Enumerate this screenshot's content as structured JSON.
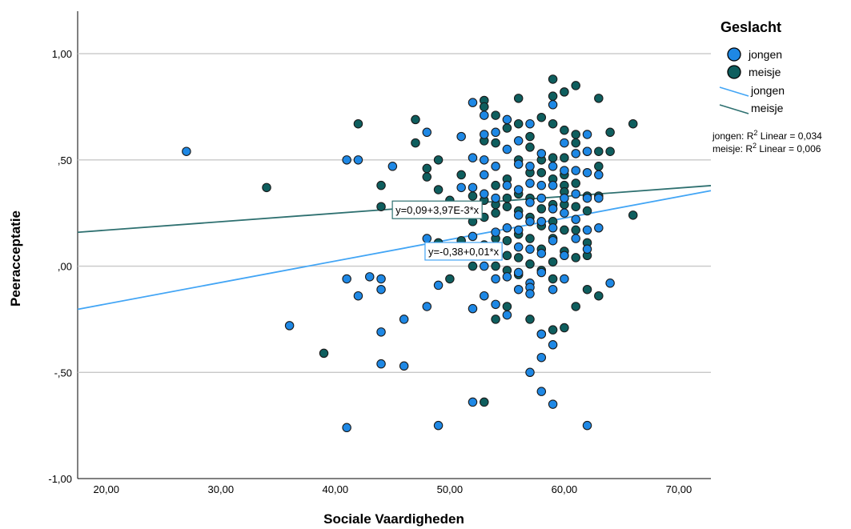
{
  "chart_data": {
    "type": "scatter",
    "xlabel": "Sociale Vaardigheden",
    "ylabel": "Peeracceptatie",
    "xlim": [
      17.5,
      72.8
    ],
    "ylim": [
      -1.0,
      1.2
    ],
    "x_ticks": [
      20,
      30,
      40,
      50,
      60,
      70
    ],
    "x_tick_labels": [
      "20,00",
      "30,00",
      "40,00",
      "50,00",
      "60,00",
      "70,00"
    ],
    "y_ticks": [
      -1.0,
      -0.5,
      0.0,
      0.5,
      1.0
    ],
    "y_tick_labels": [
      "-1,00",
      "-,50",
      ",00",
      ",50",
      "1,00"
    ],
    "grid": "horizontal",
    "legend": {
      "title": "Geslacht",
      "placement": "right",
      "marker_items": [
        "jongen",
        "meisje"
      ],
      "line_items": [
        "jongen",
        "meisje"
      ]
    },
    "r2_labels": {
      "jongen": "jongen: R",
      "meisje": "meisje: R",
      "sup": "2",
      "jongen_tail": " Linear = 0,034",
      "meisje_tail": " Linear = 0,006"
    },
    "series": [
      {
        "name": "jongen",
        "color": "#1e88e5",
        "fit": {
          "intercept": -0.38,
          "slope": 0.0101,
          "label": "y=-0,38+0,01*x",
          "label_x": 51.2,
          "label_y": 0.07
        },
        "points": [
          [
            27,
            0.54
          ],
          [
            36,
            -0.28
          ],
          [
            41,
            0.5
          ],
          [
            41,
            -0.06
          ],
          [
            41,
            -0.76
          ],
          [
            42,
            0.5
          ],
          [
            42,
            -0.14
          ],
          [
            43,
            -0.05
          ],
          [
            44,
            -0.06
          ],
          [
            44,
            -0.11
          ],
          [
            44,
            -0.31
          ],
          [
            44,
            -0.46
          ],
          [
            45,
            0.47
          ],
          [
            46,
            -0.25
          ],
          [
            46,
            -0.47
          ],
          [
            48,
            0.63
          ],
          [
            48,
            0.13
          ],
          [
            48,
            -0.19
          ],
          [
            49,
            -0.09
          ],
          [
            49,
            -0.75
          ],
          [
            50,
            0.06
          ],
          [
            51,
            0.61
          ],
          [
            51,
            0.37
          ],
          [
            52,
            0.77
          ],
          [
            52,
            0.51
          ],
          [
            52,
            0.37
          ],
          [
            52,
            0.14
          ],
          [
            52,
            0.06
          ],
          [
            52,
            -0.64
          ],
          [
            52,
            -0.2
          ],
          [
            53,
            0.71
          ],
          [
            53,
            0.62
          ],
          [
            53,
            0.5
          ],
          [
            53,
            0.43
          ],
          [
            53,
            0.34
          ],
          [
            53,
            0.07
          ],
          [
            53,
            0.0
          ],
          [
            53,
            -0.14
          ],
          [
            54,
            0.63
          ],
          [
            54,
            0.47
          ],
          [
            54,
            0.32
          ],
          [
            54,
            0.16
          ],
          [
            54,
            -0.06
          ],
          [
            54,
            -0.18
          ],
          [
            55,
            0.69
          ],
          [
            55,
            0.55
          ],
          [
            55,
            0.38
          ],
          [
            55,
            0.18
          ],
          [
            55,
            -0.05
          ],
          [
            55,
            -0.23
          ],
          [
            56,
            0.59
          ],
          [
            56,
            0.48
          ],
          [
            56,
            0.36
          ],
          [
            56,
            0.24
          ],
          [
            56,
            0.17
          ],
          [
            56,
            0.09
          ],
          [
            56,
            -0.03
          ],
          [
            56,
            -0.11
          ],
          [
            57,
            0.67
          ],
          [
            57,
            0.47
          ],
          [
            57,
            0.39
          ],
          [
            57,
            0.3
          ],
          [
            57,
            0.21
          ],
          [
            57,
            0.08
          ],
          [
            57,
            -0.08
          ],
          [
            57,
            -0.1
          ],
          [
            57,
            -0.13
          ],
          [
            57,
            -0.5
          ],
          [
            58,
            0.53
          ],
          [
            58,
            0.38
          ],
          [
            58,
            0.32
          ],
          [
            58,
            0.21
          ],
          [
            58,
            0.06
          ],
          [
            58,
            -0.03
          ],
          [
            58,
            -0.32
          ],
          [
            58,
            -0.43
          ],
          [
            58,
            -0.59
          ],
          [
            59,
            0.76
          ],
          [
            59,
            0.47
          ],
          [
            59,
            0.38
          ],
          [
            59,
            0.27
          ],
          [
            59,
            0.18
          ],
          [
            59,
            0.12
          ],
          [
            59,
            -0.11
          ],
          [
            59,
            -0.37
          ],
          [
            59,
            -0.65
          ],
          [
            60,
            0.58
          ],
          [
            60,
            0.45
          ],
          [
            60,
            0.32
          ],
          [
            60,
            0.25
          ],
          [
            60,
            0.05
          ],
          [
            60,
            -0.06
          ],
          [
            61,
            0.53
          ],
          [
            61,
            0.45
          ],
          [
            61,
            0.34
          ],
          [
            61,
            0.22
          ],
          [
            61,
            0.13
          ],
          [
            62,
            0.62
          ],
          [
            62,
            0.54
          ],
          [
            62,
            0.44
          ],
          [
            62,
            0.32
          ],
          [
            62,
            0.17
          ],
          [
            62,
            0.08
          ],
          [
            62,
            -0.75
          ],
          [
            63,
            0.43
          ],
          [
            63,
            0.32
          ],
          [
            63,
            0.18
          ],
          [
            64,
            -0.08
          ]
        ]
      },
      {
        "name": "meisje",
        "color": "#0e5e5e",
        "fit": {
          "intercept": 0.09,
          "slope": 0.00397,
          "label": "y=0,09+3,97E-3*x",
          "label_x": 48.9,
          "label_y": 0.265
        },
        "points": [
          [
            34,
            0.37
          ],
          [
            39,
            -0.41
          ],
          [
            42,
            0.67
          ],
          [
            44,
            0.38
          ],
          [
            44,
            0.28
          ],
          [
            47,
            0.69
          ],
          [
            47,
            0.58
          ],
          [
            48,
            0.46
          ],
          [
            48,
            0.42
          ],
          [
            48,
            0.25
          ],
          [
            49,
            0.5
          ],
          [
            49,
            0.36
          ],
          [
            49,
            0.11
          ],
          [
            50,
            0.31
          ],
          [
            50,
            0.05
          ],
          [
            50,
            -0.06
          ],
          [
            51,
            0.43
          ],
          [
            51,
            0.12
          ],
          [
            52,
            0.33
          ],
          [
            52,
            0.21
          ],
          [
            52,
            0.0
          ],
          [
            53,
            0.78
          ],
          [
            53,
            0.75
          ],
          [
            53,
            0.59
          ],
          [
            53,
            0.31
          ],
          [
            53,
            0.23
          ],
          [
            53,
            0.1
          ],
          [
            53,
            -0.64
          ],
          [
            54,
            0.71
          ],
          [
            54,
            0.58
          ],
          [
            54,
            0.38
          ],
          [
            54,
            0.29
          ],
          [
            54,
            0.25
          ],
          [
            54,
            0.13
          ],
          [
            54,
            0.07
          ],
          [
            54,
            0.0
          ],
          [
            54,
            -0.25
          ],
          [
            55,
            0.65
          ],
          [
            55,
            0.41
          ],
          [
            55,
            0.32
          ],
          [
            55,
            0.28
          ],
          [
            55,
            0.12
          ],
          [
            55,
            0.05
          ],
          [
            55,
            -0.02
          ],
          [
            55,
            -0.19
          ],
          [
            56,
            0.79
          ],
          [
            56,
            0.67
          ],
          [
            56,
            0.5
          ],
          [
            56,
            0.34
          ],
          [
            56,
            0.26
          ],
          [
            56,
            0.15
          ],
          [
            56,
            0.04
          ],
          [
            56,
            -0.04
          ],
          [
            57,
            0.61
          ],
          [
            57,
            0.56
          ],
          [
            57,
            0.44
          ],
          [
            57,
            0.32
          ],
          [
            57,
            0.23
          ],
          [
            57,
            0.13
          ],
          [
            57,
            0.01
          ],
          [
            57,
            -0.25
          ],
          [
            58,
            0.7
          ],
          [
            58,
            0.5
          ],
          [
            58,
            0.44
          ],
          [
            58,
            0.27
          ],
          [
            58,
            0.19
          ],
          [
            58,
            0.08
          ],
          [
            58,
            -0.02
          ],
          [
            58,
            -0.32
          ],
          [
            59,
            0.88
          ],
          [
            59,
            0.8
          ],
          [
            59,
            0.67
          ],
          [
            59,
            0.51
          ],
          [
            59,
            0.41
          ],
          [
            59,
            0.29
          ],
          [
            59,
            0.21
          ],
          [
            59,
            0.13
          ],
          [
            59,
            0.02
          ],
          [
            59,
            -0.06
          ],
          [
            59,
            -0.3
          ],
          [
            60,
            0.82
          ],
          [
            60,
            0.64
          ],
          [
            60,
            0.51
          ],
          [
            60,
            0.43
          ],
          [
            60,
            0.38
          ],
          [
            60,
            0.35
          ],
          [
            60,
            0.29
          ],
          [
            60,
            0.17
          ],
          [
            60,
            0.07
          ],
          [
            60,
            -0.29
          ],
          [
            61,
            0.85
          ],
          [
            61,
            0.62
          ],
          [
            61,
            0.58
          ],
          [
            61,
            0.39
          ],
          [
            61,
            0.28
          ],
          [
            61,
            0.17
          ],
          [
            61,
            0.04
          ],
          [
            61,
            -0.19
          ],
          [
            62,
            0.54
          ],
          [
            62,
            0.33
          ],
          [
            62,
            0.26
          ],
          [
            62,
            0.11
          ],
          [
            62,
            0.05
          ],
          [
            62,
            -0.11
          ],
          [
            63,
            0.79
          ],
          [
            63,
            0.54
          ],
          [
            63,
            0.47
          ],
          [
            63,
            0.33
          ],
          [
            63,
            -0.14
          ],
          [
            64,
            0.63
          ],
          [
            64,
            0.54
          ],
          [
            66,
            0.67
          ],
          [
            66,
            0.24
          ]
        ]
      }
    ]
  }
}
